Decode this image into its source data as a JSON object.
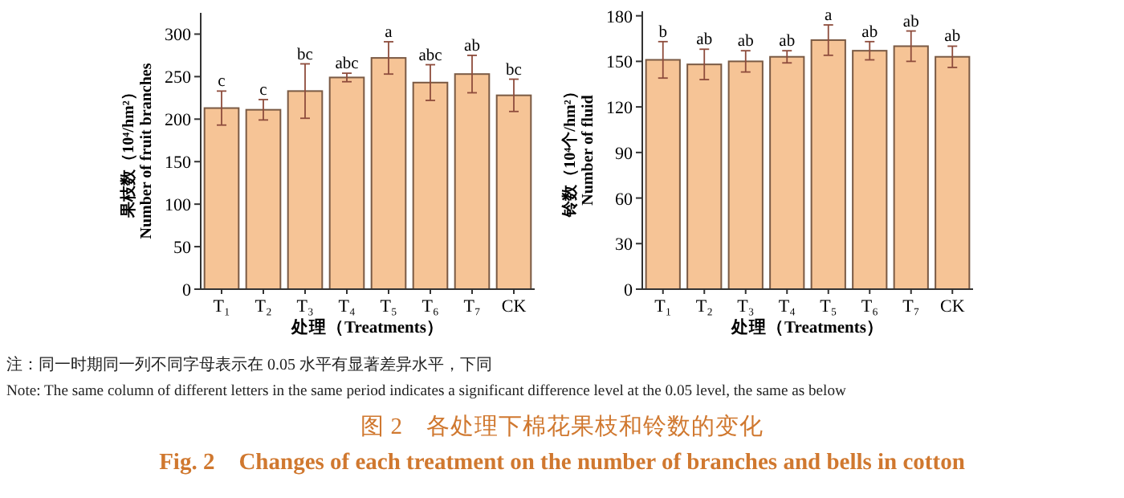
{
  "chart_data": [
    {
      "type": "bar",
      "categories": [
        "T₁",
        "T₂",
        "T₃",
        "T₄",
        "T₅",
        "T₆",
        "T₇",
        "CK"
      ],
      "values": [
        213,
        211,
        233,
        249,
        272,
        243,
        253,
        228
      ],
      "errors": [
        20,
        12,
        32,
        5,
        19,
        21,
        22,
        19
      ],
      "color": "#f6c496",
      "ylim": [
        0,
        325
      ],
      "yticks": [
        0,
        50,
        100,
        150,
        200,
        250,
        300
      ],
      "ylabel": "果枝数（10⁴/hm²）\nNumber of fruit branches",
      "xlabel": "处理（Treatments）",
      "annotations": [
        {
          "text": "c",
          "x": "T₁",
          "y": 233
        },
        {
          "text": "c",
          "x": "T₂",
          "y": 223
        },
        {
          "text": "bc",
          "x": "T₃",
          "y": 265
        },
        {
          "text": "abc",
          "x": "T₄",
          "y": 254
        },
        {
          "text": "a",
          "x": "T₅",
          "y": 291
        },
        {
          "text": "abc",
          "x": "T₆",
          "y": 264
        },
        {
          "text": "ab",
          "x": "T₇",
          "y": 275
        },
        {
          "text": "bc",
          "x": "CK",
          "y": 247
        }
      ]
    },
    {
      "type": "bar",
      "categories": [
        "T₁",
        "T₂",
        "T₃",
        "T₄",
        "T₅",
        "T₆",
        "T₇",
        "CK"
      ],
      "values": [
        151,
        148,
        150,
        153,
        164,
        157,
        160,
        153
      ],
      "errors": [
        12,
        10,
        7,
        4,
        10,
        6,
        10,
        7
      ],
      "color": "#f6c496",
      "ylim": [
        0,
        183
      ],
      "yticks": [
        0,
        30,
        60,
        90,
        120,
        150,
        180
      ],
      "ylabel": "铃数（10⁴个/hm²）\nNumber of fluid",
      "xlabel": "处理（Treatments）",
      "annotations": [
        {
          "text": "b",
          "x": "T₁",
          "y": 163
        },
        {
          "text": "ab",
          "x": "T₂",
          "y": 158
        },
        {
          "text": "ab",
          "x": "T₃",
          "y": 157
        },
        {
          "text": "ab",
          "x": "T₄",
          "y": 157
        },
        {
          "text": "a",
          "x": "T₅",
          "y": 174
        },
        {
          "text": "ab",
          "x": "T₆",
          "y": 163
        },
        {
          "text": "ab",
          "x": "T₇",
          "y": 170
        },
        {
          "text": "ab",
          "x": "CK",
          "y": 160
        },
        "注：同一时期同一列不同字母表示在 0.05 水平有显著差异水平，下同",
        "Note: The same column of different letters in the same period indicates a significant difference level at the 0.05 level, the same as below",
        "图 2　各处理下棉花果枝和铃数的变化",
        "Fig. 2　Changes of each treatment on the number of branches and bells in cotton"
      ]
    }
  ]
}
